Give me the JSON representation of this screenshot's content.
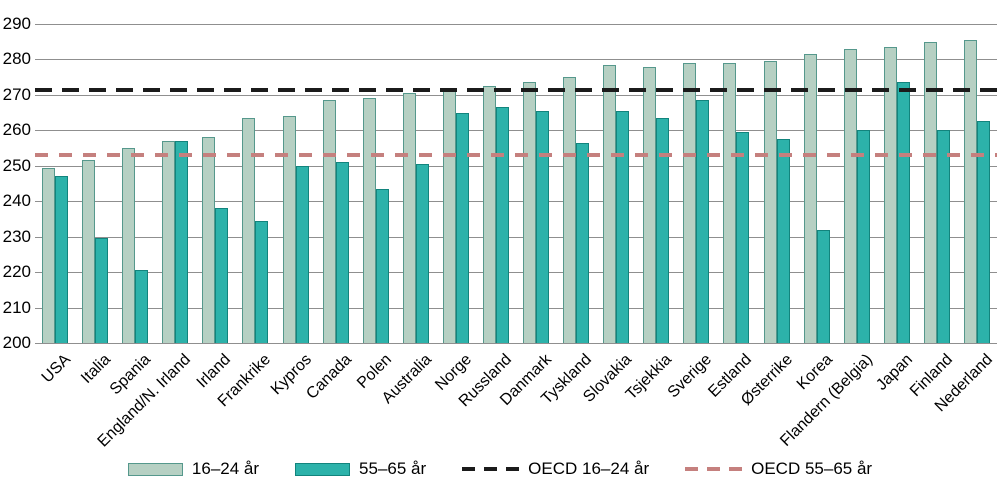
{
  "chart_data": {
    "type": "bar",
    "title": "",
    "xlabel": "",
    "ylabel": "",
    "ylim": [
      200,
      290
    ],
    "yticks": [
      200,
      210,
      220,
      230,
      240,
      250,
      260,
      270,
      280,
      290
    ],
    "grid": true,
    "legend_position": "bottom",
    "categories": [
      "USA",
      "Italia",
      "Spania",
      "England/N. Irland",
      "Irland",
      "Frankrike",
      "Kypros",
      "Canada",
      "Polen",
      "Australia",
      "Norge",
      "Russland",
      "Danmark",
      "Tyskland",
      "Slovakia",
      "Tsjekkia",
      "Sverige",
      "Estland",
      "Østerrike",
      "Korea",
      "Flandern (Belgia)",
      "Japan",
      "Finland",
      "Nederland"
    ],
    "series": [
      {
        "name": "16–24 år",
        "color": "#b6d0c3",
        "border_color": "#55988c",
        "values": [
          249.5,
          251.5,
          255,
          257,
          258,
          263.5,
          264,
          268.5,
          269,
          270.5,
          271,
          272.5,
          273.5,
          275,
          278.5,
          278,
          279,
          279,
          279.5,
          281.5,
          283,
          283.5,
          285,
          285.5
        ]
      },
      {
        "name": "55–65 år",
        "color": "#2cb2aa",
        "border_color": "#12847d",
        "values": [
          247,
          229.5,
          220.5,
          257,
          238,
          234.5,
          250,
          251,
          243.5,
          250.5,
          265,
          266.5,
          265.5,
          256.5,
          265.5,
          263.5,
          268.5,
          259.5,
          257.5,
          232,
          260,
          273.5,
          260,
          262.5
        ]
      }
    ],
    "reference_lines": [
      {
        "name": "OECD 16–24 år",
        "value": 271.5,
        "color": "#1b1b1b",
        "style": "dashed"
      },
      {
        "name": "OECD 55–65 år",
        "value": 253,
        "color": "#c5807e",
        "style": "dashed"
      }
    ],
    "gridline_color": "#8f8f8f"
  }
}
